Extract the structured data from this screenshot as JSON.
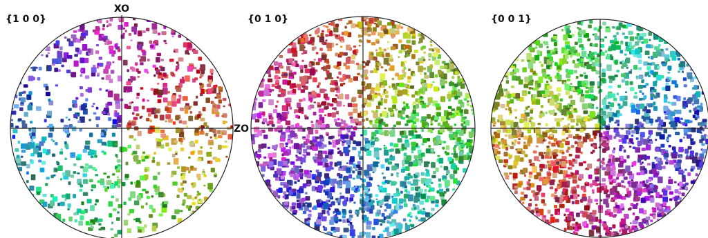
{
  "panels": [
    {
      "label": "{1 0 0}"
    },
    {
      "label": "{0 1 0}"
    },
    {
      "label": "{0 0 1}"
    }
  ],
  "axes": {
    "x": "XO",
    "z": "ZO"
  }
}
